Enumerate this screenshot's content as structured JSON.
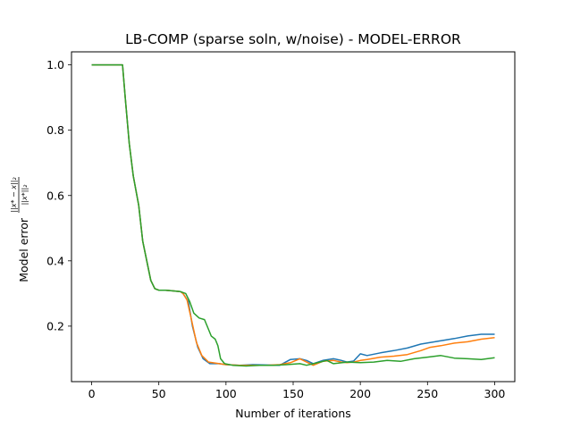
{
  "chart_data": {
    "type": "line",
    "title": "LB-COMP (sparse soln, w/noise) - MODEL-ERROR",
    "xlabel": "Number of iterations",
    "ylabel": "Model error",
    "ylabel_fraction": {
      "numerator": "||x* − x||₂",
      "denominator": "||x*||₂"
    },
    "xlim": [
      -15,
      315
    ],
    "ylim": [
      0.03,
      1.04
    ],
    "xticks": [
      0,
      50,
      100,
      150,
      200,
      250,
      300
    ],
    "yticks": [
      0.2,
      0.4,
      0.6,
      0.8,
      1.0
    ],
    "grid": false,
    "legend": "none",
    "series": [
      {
        "color": "#1f77b4",
        "points": [
          [
            0,
            1.0
          ],
          [
            23,
            1.0
          ],
          [
            25,
            0.9
          ],
          [
            28,
            0.76
          ],
          [
            31,
            0.66
          ],
          [
            35,
            0.57
          ],
          [
            38,
            0.46
          ],
          [
            41,
            0.4
          ],
          [
            44,
            0.34
          ],
          [
            47,
            0.315
          ],
          [
            50,
            0.31
          ],
          [
            55,
            0.31
          ],
          [
            60,
            0.308
          ],
          [
            66,
            0.306
          ],
          [
            68,
            0.3
          ],
          [
            72,
            0.275
          ],
          [
            75,
            0.2
          ],
          [
            79,
            0.135
          ],
          [
            83,
            0.1
          ],
          [
            88,
            0.085
          ],
          [
            95,
            0.085
          ],
          [
            100,
            0.082
          ],
          [
            110,
            0.08
          ],
          [
            120,
            0.082
          ],
          [
            130,
            0.081
          ],
          [
            140,
            0.08
          ],
          [
            148,
            0.098
          ],
          [
            155,
            0.1
          ],
          [
            160,
            0.095
          ],
          [
            165,
            0.085
          ],
          [
            172,
            0.095
          ],
          [
            180,
            0.1
          ],
          [
            186,
            0.095
          ],
          [
            190,
            0.09
          ],
          [
            195,
            0.093
          ],
          [
            200,
            0.115
          ],
          [
            205,
            0.11
          ],
          [
            215,
            0.118
          ],
          [
            225,
            0.125
          ],
          [
            235,
            0.133
          ],
          [
            245,
            0.145
          ],
          [
            252,
            0.15
          ],
          [
            260,
            0.155
          ],
          [
            270,
            0.162
          ],
          [
            280,
            0.17
          ],
          [
            290,
            0.175
          ],
          [
            300,
            0.175
          ]
        ]
      },
      {
        "color": "#ff7f0e",
        "points": [
          [
            0,
            1.0
          ],
          [
            23,
            1.0
          ],
          [
            25,
            0.9
          ],
          [
            28,
            0.76
          ],
          [
            31,
            0.66
          ],
          [
            35,
            0.57
          ],
          [
            38,
            0.46
          ],
          [
            41,
            0.4
          ],
          [
            44,
            0.34
          ],
          [
            47,
            0.315
          ],
          [
            50,
            0.31
          ],
          [
            55,
            0.31
          ],
          [
            60,
            0.308
          ],
          [
            66,
            0.306
          ],
          [
            68,
            0.3
          ],
          [
            71,
            0.28
          ],
          [
            74,
            0.225
          ],
          [
            78,
            0.15
          ],
          [
            82,
            0.11
          ],
          [
            87,
            0.09
          ],
          [
            95,
            0.085
          ],
          [
            100,
            0.082
          ],
          [
            110,
            0.08
          ],
          [
            120,
            0.08
          ],
          [
            130,
            0.08
          ],
          [
            140,
            0.082
          ],
          [
            148,
            0.088
          ],
          [
            155,
            0.1
          ],
          [
            160,
            0.09
          ],
          [
            165,
            0.08
          ],
          [
            172,
            0.092
          ],
          [
            180,
            0.095
          ],
          [
            186,
            0.09
          ],
          [
            190,
            0.088
          ],
          [
            195,
            0.09
          ],
          [
            200,
            0.095
          ],
          [
            205,
            0.098
          ],
          [
            215,
            0.105
          ],
          [
            225,
            0.108
          ],
          [
            235,
            0.113
          ],
          [
            245,
            0.125
          ],
          [
            252,
            0.135
          ],
          [
            260,
            0.14
          ],
          [
            270,
            0.148
          ],
          [
            280,
            0.152
          ],
          [
            290,
            0.16
          ],
          [
            300,
            0.165
          ]
        ]
      },
      {
        "color": "#2ca02c",
        "points": [
          [
            0,
            1.0
          ],
          [
            23,
            1.0
          ],
          [
            25,
            0.9
          ],
          [
            28,
            0.76
          ],
          [
            31,
            0.66
          ],
          [
            35,
            0.57
          ],
          [
            38,
            0.46
          ],
          [
            41,
            0.4
          ],
          [
            44,
            0.34
          ],
          [
            47,
            0.315
          ],
          [
            50,
            0.31
          ],
          [
            55,
            0.31
          ],
          [
            60,
            0.308
          ],
          [
            66,
            0.306
          ],
          [
            70,
            0.3
          ],
          [
            73,
            0.275
          ],
          [
            76,
            0.24
          ],
          [
            80,
            0.225
          ],
          [
            84,
            0.22
          ],
          [
            86,
            0.2
          ],
          [
            89,
            0.17
          ],
          [
            92,
            0.16
          ],
          [
            94,
            0.14
          ],
          [
            96,
            0.1
          ],
          [
            99,
            0.085
          ],
          [
            105,
            0.08
          ],
          [
            115,
            0.078
          ],
          [
            125,
            0.08
          ],
          [
            135,
            0.08
          ],
          [
            145,
            0.082
          ],
          [
            155,
            0.085
          ],
          [
            160,
            0.08
          ],
          [
            170,
            0.09
          ],
          [
            175,
            0.095
          ],
          [
            180,
            0.085
          ],
          [
            190,
            0.09
          ],
          [
            200,
            0.088
          ],
          [
            210,
            0.09
          ],
          [
            220,
            0.095
          ],
          [
            230,
            0.092
          ],
          [
            240,
            0.1
          ],
          [
            250,
            0.105
          ],
          [
            260,
            0.11
          ],
          [
            270,
            0.102
          ],
          [
            280,
            0.1
          ],
          [
            290,
            0.098
          ],
          [
            300,
            0.103
          ]
        ]
      }
    ]
  }
}
